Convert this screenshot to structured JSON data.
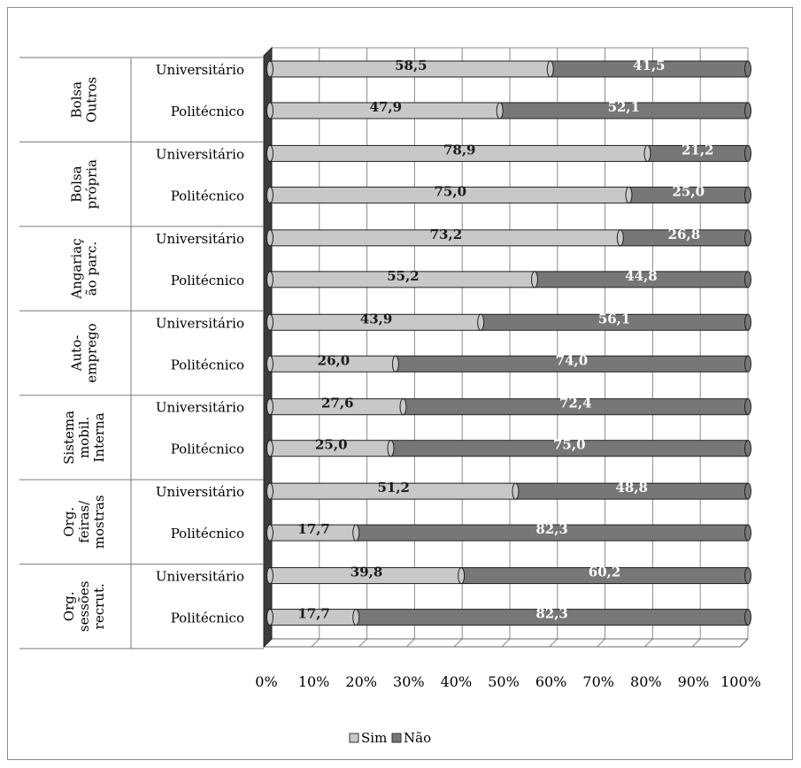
{
  "chart_data": {
    "type": "bar",
    "orientation": "horizontal",
    "stacked": "percent",
    "groups": [
      {
        "label_lines": [
          "Bolsa",
          "Outros"
        ],
        "bars": [
          {
            "category": "Universitário",
            "sim": 58.5,
            "nao": 41.5,
            "sim_label": "58,5",
            "nao_label": "41,5"
          },
          {
            "category": "Politécnico",
            "sim": 47.9,
            "nao": 52.1,
            "sim_label": "47,9",
            "nao_label": "52,1"
          }
        ]
      },
      {
        "label_lines": [
          "Bolsa",
          "própria"
        ],
        "bars": [
          {
            "category": "Universitário",
            "sim": 78.9,
            "nao": 21.2,
            "sim_label": "78,9",
            "nao_label": "21,2"
          },
          {
            "category": "Politécnico",
            "sim": 75.0,
            "nao": 25.0,
            "sim_label": "75,0",
            "nao_label": "25,0"
          }
        ]
      },
      {
        "label_lines": [
          "Angariaç",
          "ão parc."
        ],
        "bars": [
          {
            "category": "Universitário",
            "sim": 73.2,
            "nao": 26.8,
            "sim_label": "73,2",
            "nao_label": "26,8"
          },
          {
            "category": "Politécnico",
            "sim": 55.2,
            "nao": 44.8,
            "sim_label": "55,2",
            "nao_label": "44,8"
          }
        ]
      },
      {
        "label_lines": [
          "Auto-",
          "emprego"
        ],
        "bars": [
          {
            "category": "Universitário",
            "sim": 43.9,
            "nao": 56.1,
            "sim_label": "43,9",
            "nao_label": "56,1"
          },
          {
            "category": "Politécnico",
            "sim": 26.0,
            "nao": 74.0,
            "sim_label": "26,0",
            "nao_label": "74,0"
          }
        ]
      },
      {
        "label_lines": [
          "Sistema",
          "mobil.",
          "Interna"
        ],
        "bars": [
          {
            "category": "Universitário",
            "sim": 27.6,
            "nao": 72.4,
            "sim_label": "27,6",
            "nao_label": "72,4"
          },
          {
            "category": "Politécnico",
            "sim": 25.0,
            "nao": 75.0,
            "sim_label": "25,0",
            "nao_label": "75,0"
          }
        ]
      },
      {
        "label_lines": [
          "Org.",
          "feiras/",
          "mostras"
        ],
        "bars": [
          {
            "category": "Universitário",
            "sim": 51.2,
            "nao": 48.8,
            "sim_label": "51,2",
            "nao_label": "48,8"
          },
          {
            "category": "Politécnico",
            "sim": 17.7,
            "nao": 82.3,
            "sim_label": "17,7",
            "nao_label": "82,3"
          }
        ]
      },
      {
        "label_lines": [
          "Org.",
          "sessões",
          "recrut."
        ],
        "bars": [
          {
            "category": "Universitário",
            "sim": 39.8,
            "nao": 60.2,
            "sim_label": "39,8",
            "nao_label": "60,2"
          },
          {
            "category": "Politécnico",
            "sim": 17.7,
            "nao": 82.3,
            "sim_label": "17,7",
            "nao_label": "82,3"
          }
        ]
      }
    ],
    "x_ticks": [
      "0%",
      "10%",
      "20%",
      "30%",
      "40%",
      "50%",
      "60%",
      "70%",
      "80%",
      "90%",
      "100%"
    ],
    "xlim": [
      0,
      100
    ],
    "grid": true,
    "legend": {
      "placement": "bottom-center",
      "items": [
        {
          "name": "Sim",
          "color": "#c8c8c8"
        },
        {
          "name": "Não",
          "color": "#777777"
        }
      ]
    },
    "colors": {
      "sim": "#c8c8c8",
      "nao": "#777777"
    }
  }
}
